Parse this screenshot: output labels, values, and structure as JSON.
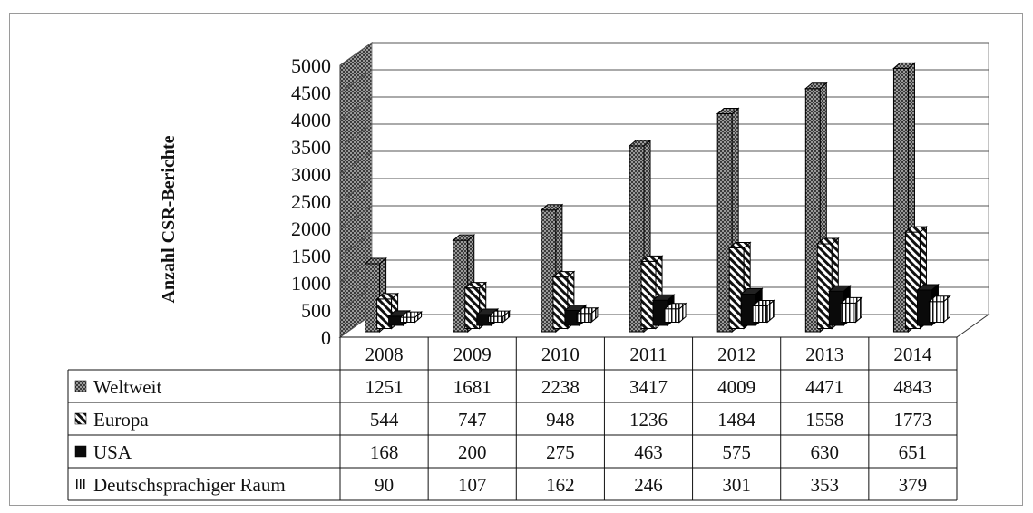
{
  "chart_data": {
    "type": "bar",
    "ylabel": "Anzahl CSR-Berichte",
    "xlabel": "",
    "title": "",
    "categories": [
      "2008",
      "2009",
      "2010",
      "2011",
      "2012",
      "2013",
      "2014"
    ],
    "ylim": [
      0,
      5000
    ],
    "yticks": [
      0,
      500,
      1000,
      1500,
      2000,
      2500,
      3000,
      3500,
      4000,
      4500,
      5000
    ],
    "grid": true,
    "legend_placement": "data-table",
    "series": [
      {
        "name": "Weltweit",
        "values": [
          1251,
          1681,
          2238,
          3417,
          4009,
          4471,
          4843
        ],
        "pattern": "dots",
        "color": "#555555"
      },
      {
        "name": "Europa",
        "values": [
          544,
          747,
          948,
          1236,
          1484,
          1558,
          1773
        ],
        "pattern": "diagonal",
        "color": "#222222"
      },
      {
        "name": "USA",
        "values": [
          168,
          200,
          275,
          463,
          575,
          630,
          651
        ],
        "pattern": "solid",
        "color": "#0a0a0a"
      },
      {
        "name": "Deutschsprachiger Raum",
        "values": [
          90,
          107,
          162,
          246,
          301,
          353,
          379
        ],
        "pattern": "vertical",
        "color": "#333333"
      }
    ]
  }
}
